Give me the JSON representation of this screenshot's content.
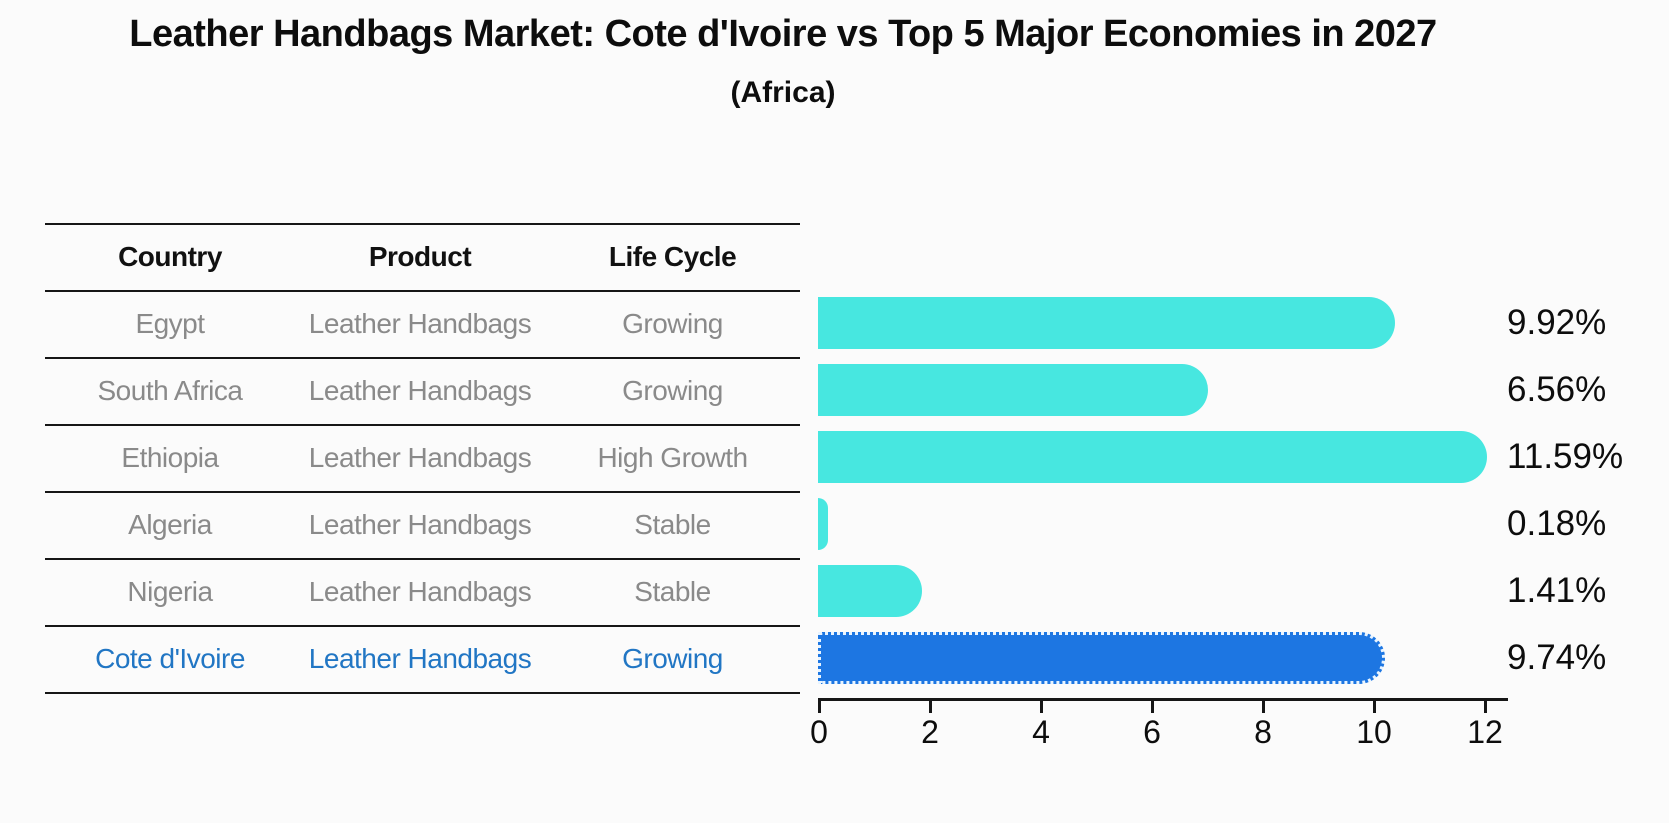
{
  "header": {
    "title": "Leather Handbags Market: Cote d'Ivoire vs Top 5 Major Economies in 2027",
    "subtitle": "(Africa)"
  },
  "table": {
    "columns": [
      "Country",
      "Product",
      "Life Cycle"
    ]
  },
  "rows": [
    {
      "country": "Egypt",
      "product": "Leather Handbags",
      "life_cycle": "Growing",
      "value": 9.92,
      "value_label": "9.92%",
      "highlight": false
    },
    {
      "country": "South Africa",
      "product": "Leather Handbags",
      "life_cycle": "Growing",
      "value": 6.56,
      "value_label": "6.56%",
      "highlight": false
    },
    {
      "country": "Ethiopia",
      "product": "Leather Handbags",
      "life_cycle": "High Growth",
      "value": 11.59,
      "value_label": "11.59%",
      "highlight": false
    },
    {
      "country": "Algeria",
      "product": "Leather Handbags",
      "life_cycle": "Stable",
      "value": 0.18,
      "value_label": "0.18%",
      "highlight": false
    },
    {
      "country": "Nigeria",
      "product": "Leather Handbags",
      "life_cycle": "Stable",
      "value": 1.41,
      "value_label": "1.41%",
      "highlight": false
    },
    {
      "country": "Cote d'Ivoire",
      "product": "Leather Handbags",
      "life_cycle": "Growing",
      "value": 9.74,
      "value_label": "9.74%",
      "highlight": true
    }
  ],
  "chart_data": {
    "type": "bar",
    "orientation": "horizontal",
    "title": "Leather Handbags Market: Cote d'Ivoire vs Top 5 Major Economies in 2027 (Africa)",
    "categories": [
      "Egypt",
      "South Africa",
      "Ethiopia",
      "Algeria",
      "Nigeria",
      "Cote d'Ivoire"
    ],
    "values": [
      9.92,
      6.56,
      11.59,
      0.18,
      1.41,
      9.74
    ],
    "value_labels": [
      "9.92%",
      "6.56%",
      "11.59%",
      "0.18%",
      "1.41%",
      "9.74%"
    ],
    "xlim": [
      0,
      12
    ],
    "xticks": [
      "0",
      "2",
      "4",
      "6",
      "8",
      "10",
      "12"
    ],
    "grid": false,
    "legend": false,
    "highlight_index": 5
  },
  "colors": {
    "bar": "#47e7e0",
    "highlight_bar": "#1d76e2",
    "highlight_text": "#2176c4",
    "row_text": "#8a8a8a",
    "heading_text": "#111111",
    "axis": "#161616"
  }
}
